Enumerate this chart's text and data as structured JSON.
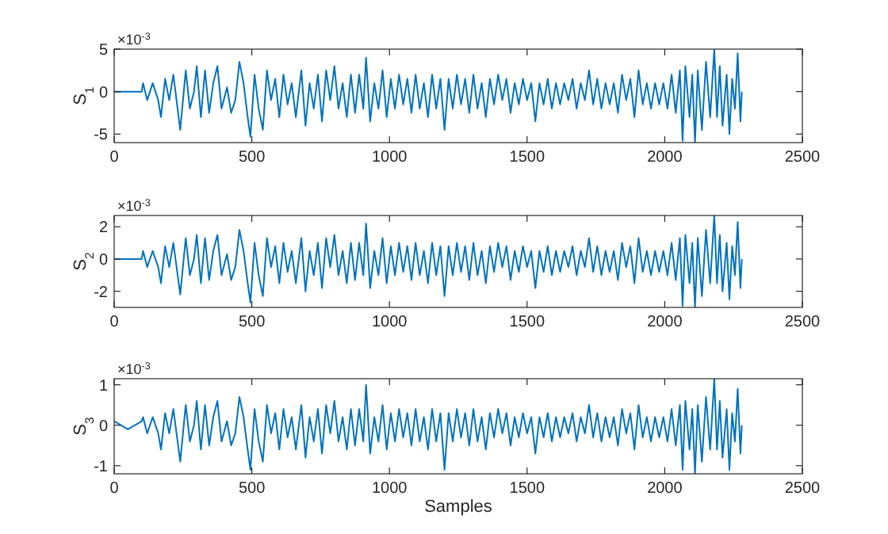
{
  "chart_data": [
    {
      "type": "line",
      "ylabel": "S$_{1}$",
      "annotations": [
        "×10$^{-3}$"
      ],
      "xlim": [
        0,
        2500
      ],
      "xticks": [
        0,
        500,
        1000,
        1500,
        2000,
        2500
      ],
      "ylim": [
        -6,
        5
      ],
      "yticks": [
        -5,
        0,
        5
      ],
      "grid": false,
      "marker": "none",
      "line_style": "solid",
      "x": [
        0,
        50,
        100,
        105,
        120,
        140,
        160,
        170,
        185,
        200,
        215,
        240,
        260,
        275,
        290,
        300,
        315,
        330,
        345,
        360,
        375,
        390,
        410,
        425,
        440,
        455,
        470,
        485,
        495,
        510,
        525,
        540,
        555,
        570,
        585,
        600,
        615,
        630,
        645,
        660,
        680,
        695,
        710,
        725,
        740,
        755,
        770,
        785,
        800,
        815,
        830,
        845,
        860,
        875,
        890,
        905,
        915,
        930,
        945,
        960,
        975,
        990,
        1005,
        1020,
        1035,
        1050,
        1065,
        1080,
        1095,
        1110,
        1125,
        1140,
        1155,
        1170,
        1185,
        1200,
        1215,
        1230,
        1245,
        1260,
        1275,
        1290,
        1305,
        1320,
        1335,
        1350,
        1365,
        1380,
        1395,
        1410,
        1425,
        1440,
        1455,
        1470,
        1485,
        1500,
        1515,
        1530,
        1545,
        1560,
        1575,
        1590,
        1605,
        1620,
        1635,
        1650,
        1665,
        1680,
        1695,
        1710,
        1725,
        1740,
        1755,
        1770,
        1785,
        1800,
        1815,
        1830,
        1845,
        1860,
        1875,
        1890,
        1905,
        1920,
        1935,
        1950,
        1965,
        1980,
        1995,
        2010,
        2025,
        2040,
        2055,
        2065,
        2075,
        2090,
        2100,
        2110,
        2120,
        2135,
        2150,
        2165,
        2180,
        2190,
        2200,
        2210,
        2225,
        2235,
        2245,
        2255,
        2265,
        2275,
        2280
      ],
      "series": [
        {
          "color": "#0072bd",
          "values": [
            0,
            0,
            0,
            1,
            -1,
            1,
            -1,
            -3,
            1.5,
            -1,
            2,
            -4.5,
            2.5,
            -2,
            0,
            3,
            -3,
            2.5,
            -2.5,
            1,
            3,
            -2,
            0.5,
            -2.5,
            -1,
            3.5,
            1,
            -3,
            -5.3,
            2,
            -2,
            -4.5,
            2.5,
            -1,
            1.5,
            -3,
            2,
            -1.5,
            1,
            -3,
            2.5,
            -4,
            1,
            -2,
            2,
            -3.5,
            2.5,
            -1,
            3,
            -2,
            1,
            -3,
            2,
            -2.5,
            2,
            -2,
            4,
            -3.5,
            1,
            -2,
            2.5,
            -3,
            1.5,
            -2,
            2,
            -1.5,
            1.5,
            -2.5,
            2,
            -2,
            1,
            -3,
            2,
            -2,
            1.5,
            -4.5,
            1.5,
            -2,
            2,
            -1.5,
            1.5,
            -2.5,
            2,
            -2,
            1,
            -3,
            1.5,
            -1.5,
            2,
            -1,
            1.5,
            -2.5,
            1,
            -1.5,
            1.5,
            -1,
            1,
            -3.5,
            1,
            -1.5,
            1.5,
            -2,
            1,
            -1.5,
            1,
            -1,
            1.5,
            -2,
            1,
            -1,
            2.5,
            -1.5,
            1.5,
            -2,
            1,
            -1.5,
            1,
            -2.5,
            2,
            -1,
            1.5,
            -3,
            2.5,
            -1.5,
            1,
            -2,
            1,
            -1.5,
            1,
            -2,
            2,
            -2.5,
            2.5,
            -5.8,
            3,
            -3,
            2,
            -6,
            2.5,
            -4.5,
            3.5,
            -3,
            5,
            -3,
            3,
            -4,
            2,
            -5,
            1.5,
            -2,
            4.5,
            -3.5,
            0
          ]
        }
      ]
    },
    {
      "type": "line",
      "ylabel": "S$_{2}$",
      "annotations": [
        "×10$^{-3}$"
      ],
      "xlim": [
        0,
        2500
      ],
      "xticks": [
        0,
        500,
        1000,
        1500,
        2000,
        2500
      ],
      "ylim": [
        -3,
        2.7
      ],
      "yticks": [
        -2,
        0,
        2
      ],
      "grid": false,
      "marker": "none",
      "line_style": "solid",
      "x": [
        0,
        50,
        100,
        105,
        120,
        140,
        160,
        170,
        185,
        200,
        215,
        240,
        260,
        275,
        290,
        300,
        315,
        330,
        345,
        360,
        375,
        390,
        410,
        425,
        440,
        455,
        470,
        485,
        495,
        510,
        525,
        540,
        555,
        570,
        585,
        600,
        615,
        630,
        645,
        660,
        680,
        695,
        710,
        725,
        740,
        755,
        770,
        785,
        800,
        815,
        830,
        845,
        860,
        875,
        890,
        905,
        915,
        930,
        945,
        960,
        975,
        990,
        1005,
        1020,
        1035,
        1050,
        1065,
        1080,
        1095,
        1110,
        1125,
        1140,
        1155,
        1170,
        1185,
        1200,
        1215,
        1230,
        1245,
        1260,
        1275,
        1290,
        1305,
        1320,
        1335,
        1350,
        1365,
        1380,
        1395,
        1410,
        1425,
        1440,
        1455,
        1470,
        1485,
        1500,
        1515,
        1530,
        1545,
        1560,
        1575,
        1590,
        1605,
        1620,
        1635,
        1650,
        1665,
        1680,
        1695,
        1710,
        1725,
        1740,
        1755,
        1770,
        1785,
        1800,
        1815,
        1830,
        1845,
        1860,
        1875,
        1890,
        1905,
        1920,
        1935,
        1950,
        1965,
        1980,
        1995,
        2010,
        2025,
        2040,
        2055,
        2065,
        2075,
        2090,
        2100,
        2110,
        2120,
        2135,
        2150,
        2165,
        2180,
        2190,
        2200,
        2210,
        2225,
        2235,
        2245,
        2255,
        2265,
        2275,
        2280
      ],
      "series": [
        {
          "color": "#0072bd",
          "values": [
            0,
            0,
            0,
            0.5,
            -0.5,
            0.5,
            -0.5,
            -1.5,
            0.8,
            -0.5,
            1,
            -2.2,
            1.3,
            -1,
            0,
            1.5,
            -1.5,
            1.3,
            -1.3,
            0.5,
            1.5,
            -1,
            0.3,
            -1.3,
            -0.5,
            1.8,
            0.5,
            -1.5,
            -2.7,
            1,
            -1,
            -2.3,
            1.3,
            -0.5,
            0.8,
            -1.5,
            1,
            -0.8,
            0.5,
            -1.5,
            1.3,
            -2,
            0.5,
            -1,
            1,
            -1.8,
            1.3,
            -0.5,
            1.5,
            -1,
            0.5,
            -1.5,
            1,
            -1.3,
            1,
            -1,
            2.2,
            -1.8,
            0.5,
            -1,
            1.3,
            -1.5,
            0.8,
            -1,
            1,
            -0.8,
            0.8,
            -1.3,
            1,
            -1,
            0.5,
            -1.5,
            1,
            -1,
            0.8,
            -2.3,
            0.8,
            -1,
            1,
            -0.8,
            0.8,
            -1.3,
            1,
            -1,
            0.5,
            -1.5,
            0.8,
            -0.8,
            1,
            -0.5,
            0.8,
            -1.3,
            0.5,
            -0.8,
            0.8,
            -0.5,
            0.5,
            -1.8,
            0.5,
            -0.8,
            0.8,
            -1,
            0.5,
            -0.8,
            0.5,
            -0.5,
            0.8,
            -1,
            0.5,
            -0.5,
            1.3,
            -0.8,
            0.8,
            -1,
            0.5,
            -0.8,
            0.5,
            -1.3,
            1,
            -0.5,
            0.8,
            -1.5,
            1.3,
            -0.8,
            0.5,
            -1,
            0.5,
            -0.8,
            0.5,
            -1,
            1,
            -1.3,
            1.3,
            -2.9,
            1.5,
            -1.5,
            1,
            -3,
            1.3,
            -2.3,
            1.8,
            -1.5,
            2.7,
            -1.5,
            1.5,
            -2,
            1,
            -2.5,
            0.8,
            -1,
            2.3,
            -1.8,
            0
          ]
        }
      ]
    },
    {
      "type": "line",
      "ylabel": "S$_{3}$",
      "xlabel": "Samples",
      "annotations": [
        "×10$^{-3}$"
      ],
      "xlim": [
        0,
        2500
      ],
      "xticks": [
        0,
        500,
        1000,
        1500,
        2000,
        2500
      ],
      "ylim": [
        -1.2,
        1.15
      ],
      "yticks": [
        -1,
        0,
        1
      ],
      "grid": false,
      "marker": "none",
      "line_style": "solid",
      "x": [
        0,
        50,
        100,
        105,
        120,
        140,
        160,
        170,
        185,
        200,
        215,
        240,
        260,
        275,
        290,
        300,
        315,
        330,
        345,
        360,
        375,
        390,
        410,
        425,
        440,
        455,
        470,
        485,
        495,
        510,
        525,
        540,
        555,
        570,
        585,
        600,
        615,
        630,
        645,
        660,
        680,
        695,
        710,
        725,
        740,
        755,
        770,
        785,
        800,
        815,
        830,
        845,
        860,
        875,
        890,
        905,
        915,
        930,
        945,
        960,
        975,
        990,
        1005,
        1020,
        1035,
        1050,
        1065,
        1080,
        1095,
        1110,
        1125,
        1140,
        1155,
        1170,
        1185,
        1200,
        1215,
        1230,
        1245,
        1260,
        1275,
        1290,
        1305,
        1320,
        1335,
        1350,
        1365,
        1380,
        1395,
        1410,
        1425,
        1440,
        1455,
        1470,
        1485,
        1500,
        1515,
        1530,
        1545,
        1560,
        1575,
        1590,
        1605,
        1620,
        1635,
        1650,
        1665,
        1680,
        1695,
        1710,
        1725,
        1740,
        1755,
        1770,
        1785,
        1800,
        1815,
        1830,
        1845,
        1860,
        1875,
        1890,
        1905,
        1920,
        1935,
        1950,
        1965,
        1980,
        1995,
        2010,
        2025,
        2040,
        2055,
        2065,
        2075,
        2090,
        2100,
        2110,
        2120,
        2135,
        2150,
        2165,
        2180,
        2190,
        2200,
        2210,
        2225,
        2235,
        2245,
        2255,
        2265,
        2275,
        2280
      ],
      "series": [
        {
          "color": "#0072bd",
          "values": [
            0.1,
            -0.1,
            0.1,
            0.2,
            -0.2,
            0.2,
            -0.2,
            -0.6,
            0.3,
            -0.2,
            0.4,
            -0.9,
            0.5,
            -0.4,
            0,
            0.6,
            -0.6,
            0.5,
            -0.5,
            0.2,
            0.6,
            -0.4,
            0.1,
            -0.5,
            -0.2,
            0.7,
            0.2,
            -0.6,
            -1.1,
            0.4,
            -0.4,
            -0.9,
            0.5,
            -0.2,
            0.3,
            -0.6,
            0.4,
            -0.3,
            0.2,
            -0.6,
            0.5,
            -0.8,
            0.2,
            -0.4,
            0.4,
            -0.7,
            0.5,
            -0.2,
            0.6,
            -0.4,
            0.2,
            -0.6,
            0.4,
            -0.5,
            0.4,
            -0.4,
            1,
            -0.7,
            0.2,
            -0.4,
            0.5,
            -0.6,
            0.3,
            -0.4,
            0.4,
            -0.3,
            0.3,
            -0.5,
            0.4,
            -0.4,
            0.2,
            -0.6,
            0.4,
            -0.4,
            0.3,
            -1.1,
            0.3,
            -0.4,
            0.4,
            -0.3,
            0.3,
            -0.5,
            0.4,
            -0.4,
            0.2,
            -0.6,
            0.3,
            -0.3,
            0.4,
            -0.2,
            0.3,
            -0.5,
            0.2,
            -0.3,
            0.3,
            -0.2,
            0.2,
            -0.7,
            0.2,
            -0.3,
            0.3,
            -0.4,
            0.2,
            -0.3,
            0.2,
            -0.2,
            0.3,
            -0.4,
            0.2,
            -0.2,
            0.5,
            -0.3,
            0.3,
            -0.4,
            0.2,
            -0.3,
            0.2,
            -0.5,
            0.4,
            -0.2,
            0.3,
            -0.6,
            0.5,
            -0.3,
            0.2,
            -0.4,
            0.2,
            -0.3,
            0.2,
            -0.4,
            0.4,
            -0.5,
            0.5,
            -1.1,
            0.6,
            -0.6,
            0.4,
            -1.2,
            0.5,
            -0.9,
            0.7,
            -0.6,
            1.15,
            -0.6,
            0.6,
            -0.8,
            0.4,
            -1.1,
            0.3,
            -0.4,
            0.9,
            -0.7,
            0
          ]
        }
      ]
    }
  ]
}
